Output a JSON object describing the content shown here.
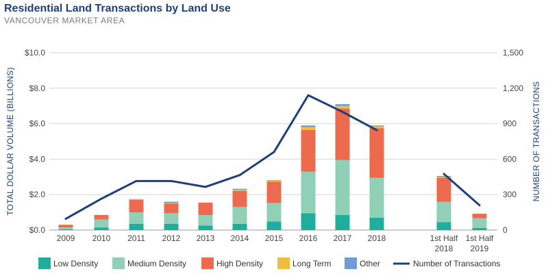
{
  "chart_data": {
    "type": "bar",
    "title": "Residential Land Transactions by Land Use",
    "subtitle": "VANCOUVER MARKET AREA",
    "ylabel": "TOTAL DOLLAR VOLUME (BILLIONS)",
    "y2label": "NUMBER OF TRANSACTIONS",
    "ylim": [
      0,
      10
    ],
    "y2lim": [
      0,
      1500
    ],
    "yticks": [
      "$0.0",
      "$2.0",
      "$4.0",
      "$6.0",
      "$8.0",
      "$10.0"
    ],
    "y2ticks": [
      "0",
      "300",
      "600",
      "900",
      "1,200",
      "1,500"
    ],
    "categories": [
      {
        "l1": "2009",
        "l2": ""
      },
      {
        "l1": "2010",
        "l2": ""
      },
      {
        "l1": "2011",
        "l2": ""
      },
      {
        "l1": "2012",
        "l2": ""
      },
      {
        "l1": "2013",
        "l2": ""
      },
      {
        "l1": "2014",
        "l2": ""
      },
      {
        "l1": "2015",
        "l2": ""
      },
      {
        "l1": "2016",
        "l2": ""
      },
      {
        "l1": "2017",
        "l2": ""
      },
      {
        "l1": "2018",
        "l2": ""
      },
      {
        "l1": "1st Half",
        "l2": "2018"
      },
      {
        "l1": "1st Half",
        "l2": "2019"
      }
    ],
    "series": [
      {
        "name": "Low Density",
        "color": "#1fae9b",
        "values": [
          0.05,
          0.15,
          0.35,
          0.35,
          0.25,
          0.35,
          0.48,
          0.95,
          0.85,
          0.7,
          0.45,
          0.12
        ]
      },
      {
        "name": "Medium Density",
        "color": "#8fd0b7",
        "values": [
          0.1,
          0.45,
          0.65,
          0.6,
          0.6,
          0.95,
          1.05,
          2.35,
          3.1,
          2.25,
          1.15,
          0.55
        ]
      },
      {
        "name": "High Density",
        "color": "#ec6a4e",
        "values": [
          0.15,
          0.25,
          0.7,
          0.55,
          0.7,
          0.9,
          1.2,
          2.35,
          2.9,
          2.8,
          1.35,
          0.25
        ]
      },
      {
        "name": "Long Term",
        "color": "#f0be3c",
        "values": [
          0.0,
          0.0,
          0.03,
          0.03,
          0.0,
          0.08,
          0.06,
          0.15,
          0.15,
          0.1,
          0.05,
          0.0
        ]
      },
      {
        "name": "Other",
        "color": "#6f9bd6",
        "values": [
          0.0,
          0.0,
          0.02,
          0.07,
          0.0,
          0.05,
          0.03,
          0.1,
          0.1,
          0.05,
          0.05,
          0.0
        ]
      }
    ],
    "line": {
      "name": "Number of Transactions",
      "color": "#1f3f7a",
      "segments": [
        {
          "indices": [
            0,
            1,
            2,
            3,
            4,
            5,
            6,
            7,
            8,
            9
          ],
          "values": [
            95,
            265,
            415,
            415,
            365,
            465,
            660,
            1140,
            1000,
            845
          ]
        },
        {
          "indices": [
            10,
            11
          ],
          "values": [
            475,
            210
          ]
        }
      ]
    }
  }
}
